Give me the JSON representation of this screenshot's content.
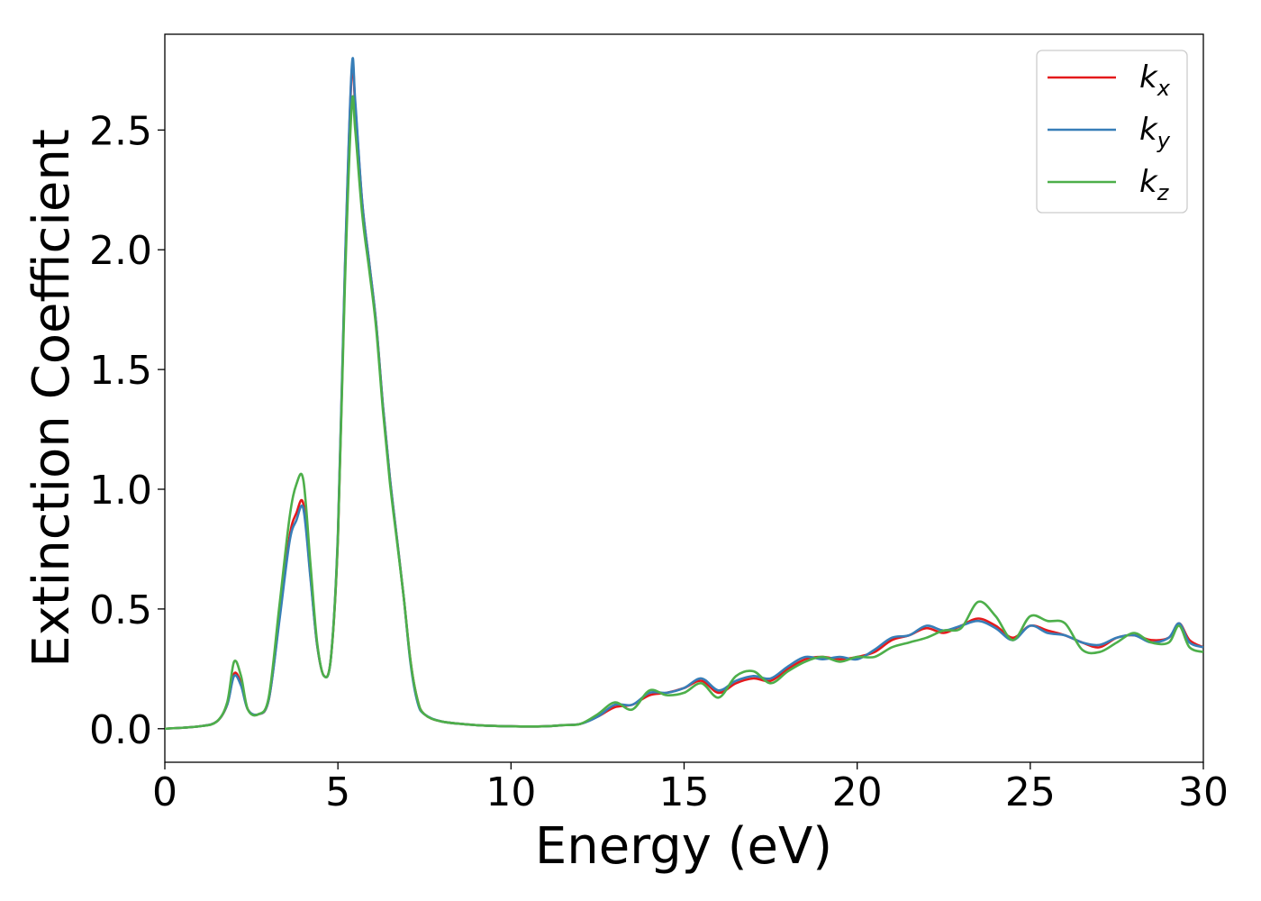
{
  "chart_data": {
    "type": "line",
    "xlabel": "Energy (eV)",
    "ylabel": "Extinction Coefficient",
    "xlim": [
      0,
      30
    ],
    "ylim": [
      -0.14,
      2.9
    ],
    "xticks": [
      0,
      5,
      10,
      15,
      20,
      25,
      30
    ],
    "xtick_labels": [
      "0",
      "5",
      "10",
      "15",
      "20",
      "25",
      "30"
    ],
    "yticks": [
      0.0,
      0.5,
      1.0,
      1.5,
      2.0,
      2.5
    ],
    "ytick_labels": [
      "0.0",
      "0.5",
      "1.0",
      "1.5",
      "2.0",
      "2.5"
    ],
    "grid": false,
    "legend_position": "top-right",
    "series": [
      {
        "name": "k_x",
        "legend_base": "k",
        "legend_sub": "x",
        "color": "#e41a1c",
        "x": [
          0,
          1,
          1.5,
          1.8,
          2.0,
          2.2,
          2.4,
          2.7,
          3.0,
          3.3,
          3.6,
          3.8,
          4.0,
          4.2,
          4.4,
          4.6,
          4.8,
          5.0,
          5.2,
          5.4,
          5.5,
          5.7,
          5.9,
          6.1,
          6.3,
          6.5,
          6.7,
          6.9,
          7.1,
          7.3,
          7.5,
          8,
          9,
          10,
          11,
          11.5,
          12,
          12.5,
          13,
          13.5,
          14,
          14.5,
          15,
          15.5,
          16,
          16.5,
          17,
          17.5,
          18,
          18.5,
          19,
          19.5,
          20,
          20.5,
          21,
          21.5,
          22,
          22.5,
          23,
          23.5,
          24,
          24.5,
          25,
          25.5,
          26,
          26.5,
          27,
          27.5,
          28,
          28.5,
          29,
          29.3,
          29.6,
          30
        ],
        "y": [
          0.0,
          0.01,
          0.03,
          0.1,
          0.23,
          0.19,
          0.08,
          0.06,
          0.12,
          0.45,
          0.8,
          0.9,
          0.94,
          0.65,
          0.35,
          0.22,
          0.3,
          0.8,
          1.9,
          2.74,
          2.6,
          2.2,
          1.95,
          1.7,
          1.35,
          1.05,
          0.8,
          0.55,
          0.28,
          0.12,
          0.06,
          0.03,
          0.015,
          0.01,
          0.01,
          0.015,
          0.02,
          0.05,
          0.09,
          0.1,
          0.14,
          0.15,
          0.17,
          0.2,
          0.15,
          0.19,
          0.21,
          0.2,
          0.25,
          0.29,
          0.3,
          0.29,
          0.3,
          0.32,
          0.37,
          0.39,
          0.42,
          0.4,
          0.43,
          0.46,
          0.43,
          0.38,
          0.43,
          0.41,
          0.39,
          0.36,
          0.34,
          0.38,
          0.39,
          0.37,
          0.38,
          0.44,
          0.37,
          0.34
        ]
      },
      {
        "name": "k_y",
        "legend_base": "k",
        "legend_sub": "y",
        "color": "#377eb8",
        "x": [
          0,
          1,
          1.5,
          1.8,
          2.0,
          2.2,
          2.4,
          2.7,
          3.0,
          3.3,
          3.6,
          3.8,
          4.0,
          4.2,
          4.4,
          4.6,
          4.8,
          5.0,
          5.2,
          5.4,
          5.5,
          5.7,
          5.9,
          6.1,
          6.3,
          6.5,
          6.7,
          6.9,
          7.1,
          7.3,
          7.5,
          8,
          9,
          10,
          11,
          11.5,
          12,
          12.5,
          13,
          13.5,
          14,
          14.5,
          15,
          15.5,
          16,
          16.5,
          17,
          17.5,
          18,
          18.5,
          19,
          19.5,
          20,
          20.5,
          21,
          21.5,
          22,
          22.5,
          23,
          23.5,
          24,
          24.5,
          25,
          25.5,
          26,
          26.5,
          27,
          27.5,
          28,
          28.5,
          29,
          29.3,
          29.6,
          30
        ],
        "y": [
          0.0,
          0.01,
          0.03,
          0.1,
          0.22,
          0.18,
          0.08,
          0.06,
          0.12,
          0.44,
          0.78,
          0.87,
          0.92,
          0.64,
          0.35,
          0.22,
          0.3,
          0.82,
          1.92,
          2.76,
          2.62,
          2.2,
          1.95,
          1.7,
          1.35,
          1.05,
          0.8,
          0.55,
          0.27,
          0.11,
          0.06,
          0.03,
          0.015,
          0.01,
          0.01,
          0.015,
          0.02,
          0.05,
          0.1,
          0.1,
          0.15,
          0.15,
          0.17,
          0.21,
          0.16,
          0.2,
          0.22,
          0.21,
          0.26,
          0.3,
          0.29,
          0.3,
          0.29,
          0.33,
          0.38,
          0.39,
          0.43,
          0.41,
          0.43,
          0.45,
          0.42,
          0.37,
          0.43,
          0.4,
          0.39,
          0.36,
          0.35,
          0.38,
          0.39,
          0.36,
          0.38,
          0.44,
          0.36,
          0.34
        ]
      },
      {
        "name": "k_z",
        "legend_base": "k",
        "legend_sub": "z",
        "color": "#4daf4a",
        "x": [
          0,
          1,
          1.5,
          1.8,
          2.0,
          2.2,
          2.4,
          2.7,
          3.0,
          3.3,
          3.6,
          3.8,
          4.0,
          4.2,
          4.4,
          4.6,
          4.8,
          5.0,
          5.2,
          5.4,
          5.5,
          5.7,
          5.9,
          6.1,
          6.3,
          6.5,
          6.7,
          6.9,
          7.1,
          7.3,
          7.5,
          8,
          9,
          10,
          11,
          11.5,
          12,
          12.5,
          13,
          13.5,
          14,
          14.5,
          15,
          15.5,
          16,
          16.5,
          17,
          17.5,
          18,
          18.5,
          19,
          19.5,
          20,
          20.5,
          21,
          21.5,
          22,
          22.5,
          23,
          23.5,
          24,
          24.5,
          25,
          25.5,
          26,
          26.5,
          27,
          27.5,
          28,
          28.5,
          29,
          29.3,
          29.6,
          30
        ],
        "y": [
          0.0,
          0.01,
          0.03,
          0.11,
          0.28,
          0.22,
          0.08,
          0.06,
          0.13,
          0.5,
          0.88,
          1.02,
          1.04,
          0.7,
          0.36,
          0.22,
          0.3,
          0.8,
          1.85,
          2.6,
          2.5,
          2.15,
          1.92,
          1.68,
          1.33,
          1.03,
          0.79,
          0.55,
          0.28,
          0.12,
          0.06,
          0.03,
          0.015,
          0.01,
          0.01,
          0.015,
          0.02,
          0.06,
          0.11,
          0.08,
          0.16,
          0.14,
          0.15,
          0.19,
          0.13,
          0.22,
          0.24,
          0.19,
          0.24,
          0.28,
          0.3,
          0.28,
          0.3,
          0.3,
          0.34,
          0.36,
          0.38,
          0.41,
          0.42,
          0.53,
          0.47,
          0.37,
          0.47,
          0.45,
          0.44,
          0.33,
          0.32,
          0.36,
          0.4,
          0.36,
          0.36,
          0.43,
          0.34,
          0.32
        ]
      }
    ]
  }
}
